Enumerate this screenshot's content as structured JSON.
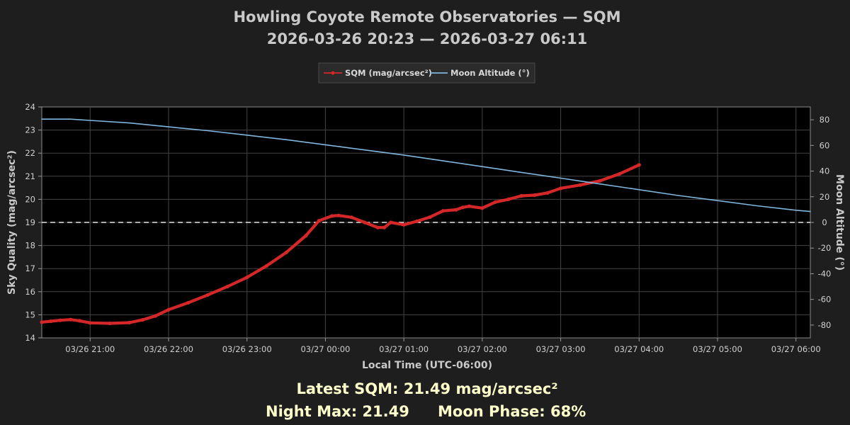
{
  "chart_data": {
    "type": "line",
    "title": "Howling Coyote Remote Observatories — SQM",
    "subtitle": "2026-03-26 20:23 — 2026-03-27 06:11",
    "xlabel": "Local Time (UTC-06:00)",
    "ylabel": "Sky Quality (mag/arcsec²)",
    "y2label": "Moon Altitude (°)",
    "xlim": [
      "2026-03-26 20:23",
      "2026-03-27 06:11"
    ],
    "ylim": [
      14,
      24
    ],
    "y2lim": [
      -90,
      90
    ],
    "x_ticks": [
      "03/26 21:00",
      "03/26 22:00",
      "03/26 23:00",
      "03/27 00:00",
      "03/27 01:00",
      "03/27 02:00",
      "03/27 03:00",
      "03/27 04:00",
      "03/27 05:00",
      "03/27 06:00"
    ],
    "y_ticks": [
      "14",
      "15",
      "16",
      "17",
      "18",
      "19",
      "20",
      "21",
      "22",
      "23",
      "24"
    ],
    "y2_ticks": [
      "-80",
      "-60",
      "-40",
      "-20",
      "0",
      "20",
      "40",
      "60",
      "80"
    ],
    "grid": true,
    "legend_position": "top-center",
    "reference_line": {
      "axis": "y2",
      "value": 0,
      "style": "dashed"
    },
    "series": [
      {
        "name": "SQM (mag/arcsec²)",
        "axis": "left",
        "color": "#d62728",
        "x": [
          "20:23",
          "20:30",
          "20:37",
          "20:45",
          "20:52",
          "21:00",
          "21:15",
          "21:30",
          "21:40",
          "21:50",
          "22:00",
          "22:15",
          "22:30",
          "22:45",
          "23:00",
          "23:15",
          "23:30",
          "23:45",
          "23:55",
          "00:05",
          "00:10",
          "00:20",
          "00:30",
          "00:40",
          "00:45",
          "00:50",
          "01:00",
          "01:10",
          "01:20",
          "01:30",
          "01:40",
          "01:45",
          "01:50",
          "02:00",
          "02:10",
          "02:20",
          "02:30",
          "02:40",
          "02:50",
          "03:00",
          "03:15",
          "03:30",
          "03:45",
          "04:00"
        ],
        "values": [
          14.68,
          14.72,
          14.76,
          14.79,
          14.74,
          14.65,
          14.63,
          14.66,
          14.78,
          14.95,
          15.22,
          15.52,
          15.86,
          16.22,
          16.62,
          17.12,
          17.7,
          18.42,
          19.07,
          19.28,
          19.3,
          19.22,
          19.0,
          18.78,
          18.78,
          19.0,
          18.9,
          19.05,
          19.23,
          19.5,
          19.55,
          19.65,
          19.7,
          19.62,
          19.88,
          20.0,
          20.15,
          20.18,
          20.28,
          20.48,
          20.62,
          20.8,
          21.1,
          21.49
        ]
      },
      {
        "name": "Moon Altitude (°)",
        "axis": "right",
        "color": "#7fb6de",
        "x": [
          "20:23",
          "20:45",
          "21:00",
          "21:30",
          "22:00",
          "22:30",
          "23:00",
          "23:30",
          "00:00",
          "00:30",
          "01:00",
          "01:30",
          "02:00",
          "02:30",
          "03:00",
          "03:30",
          "04:00",
          "04:30",
          "05:00",
          "05:30",
          "06:00",
          "06:11"
        ],
        "values": [
          80.5,
          80.5,
          79.5,
          77.5,
          74.5,
          71.5,
          68,
          64.5,
          60.5,
          56.5,
          52.5,
          48,
          43.5,
          39,
          34.5,
          30,
          25.5,
          21,
          17,
          13,
          9.5,
          8.5
        ]
      }
    ]
  },
  "stats": {
    "latest_sqm": "Latest SQM:  21.49 mag/arcsec²",
    "night_max": "Night Max:  21.49",
    "moon_phase": "Moon Phase:  68%"
  }
}
